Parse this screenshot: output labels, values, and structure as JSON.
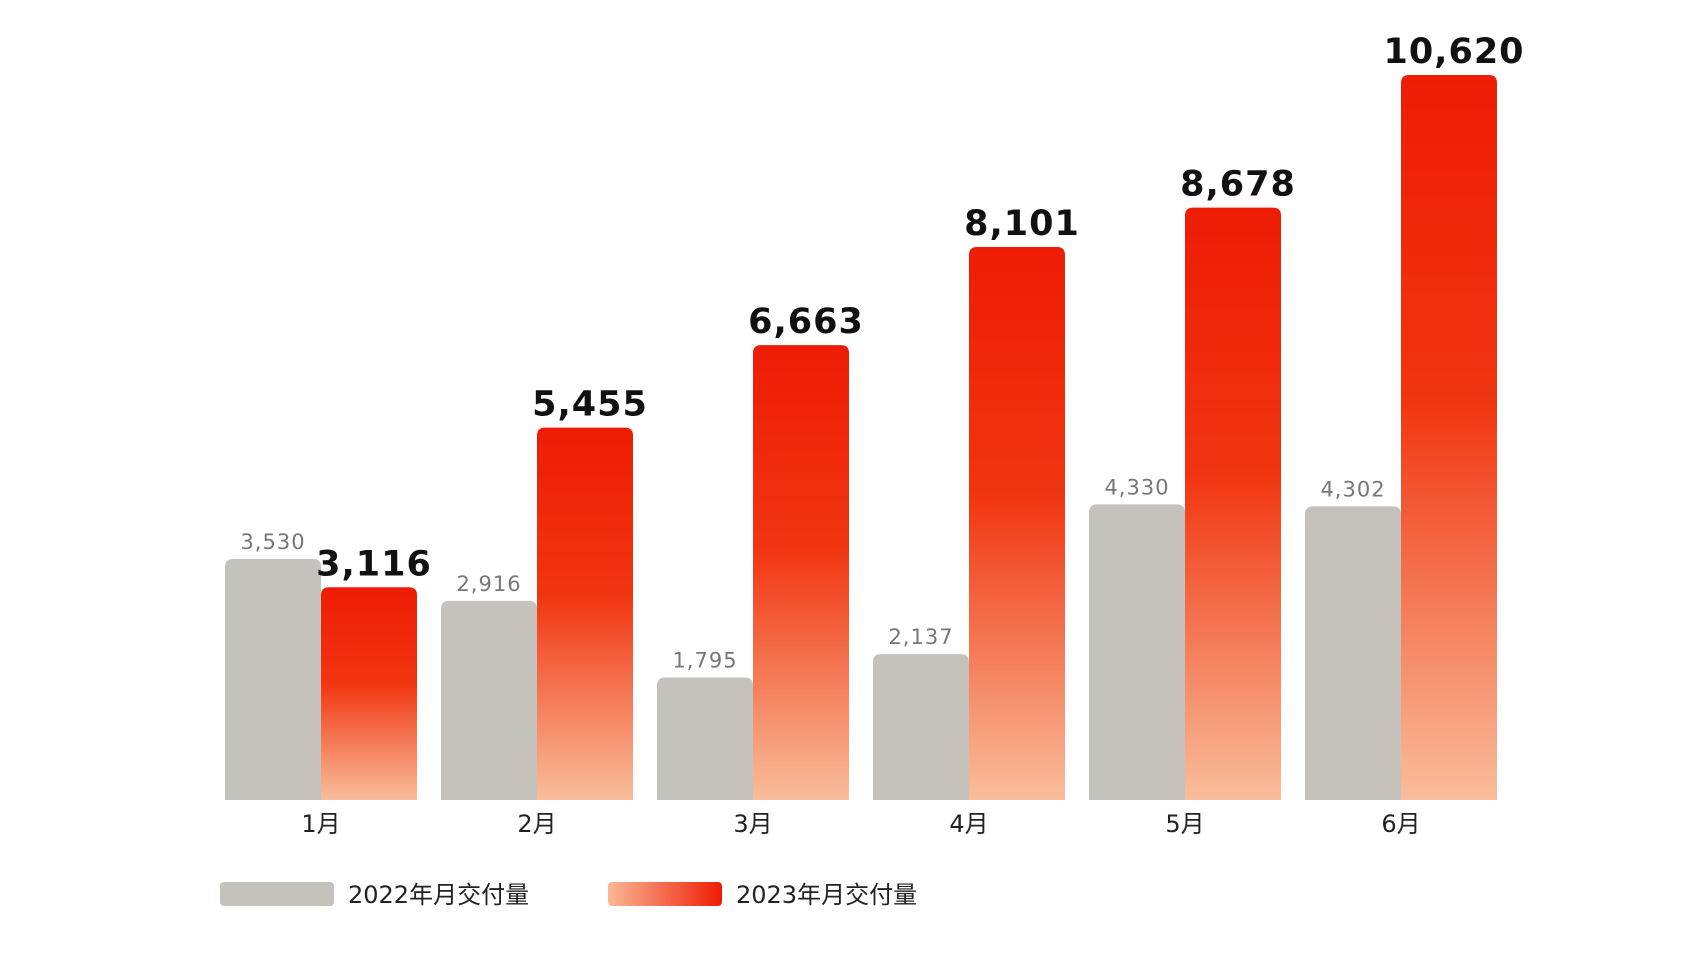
{
  "chart_data": {
    "type": "bar",
    "categories": [
      "1月",
      "2月",
      "3月",
      "4月",
      "5月",
      "6月"
    ],
    "series": [
      {
        "name": "2022年月交付量",
        "color": "#c5c2bb",
        "values": [
          3530,
          2916,
          1795,
          2137,
          4330,
          4302
        ],
        "value_labels": [
          "3,530",
          "2,916",
          "1,795",
          "2,137",
          "4,330",
          "4,302"
        ]
      },
      {
        "name": "2023年月交付量",
        "color": "#ee1c05",
        "values": [
          3116,
          5455,
          6663,
          8101,
          8678,
          10620
        ],
        "value_labels": [
          "3,116",
          "5,455",
          "6,663",
          "8,101",
          "8,678",
          "10,620"
        ]
      }
    ]
  }
}
